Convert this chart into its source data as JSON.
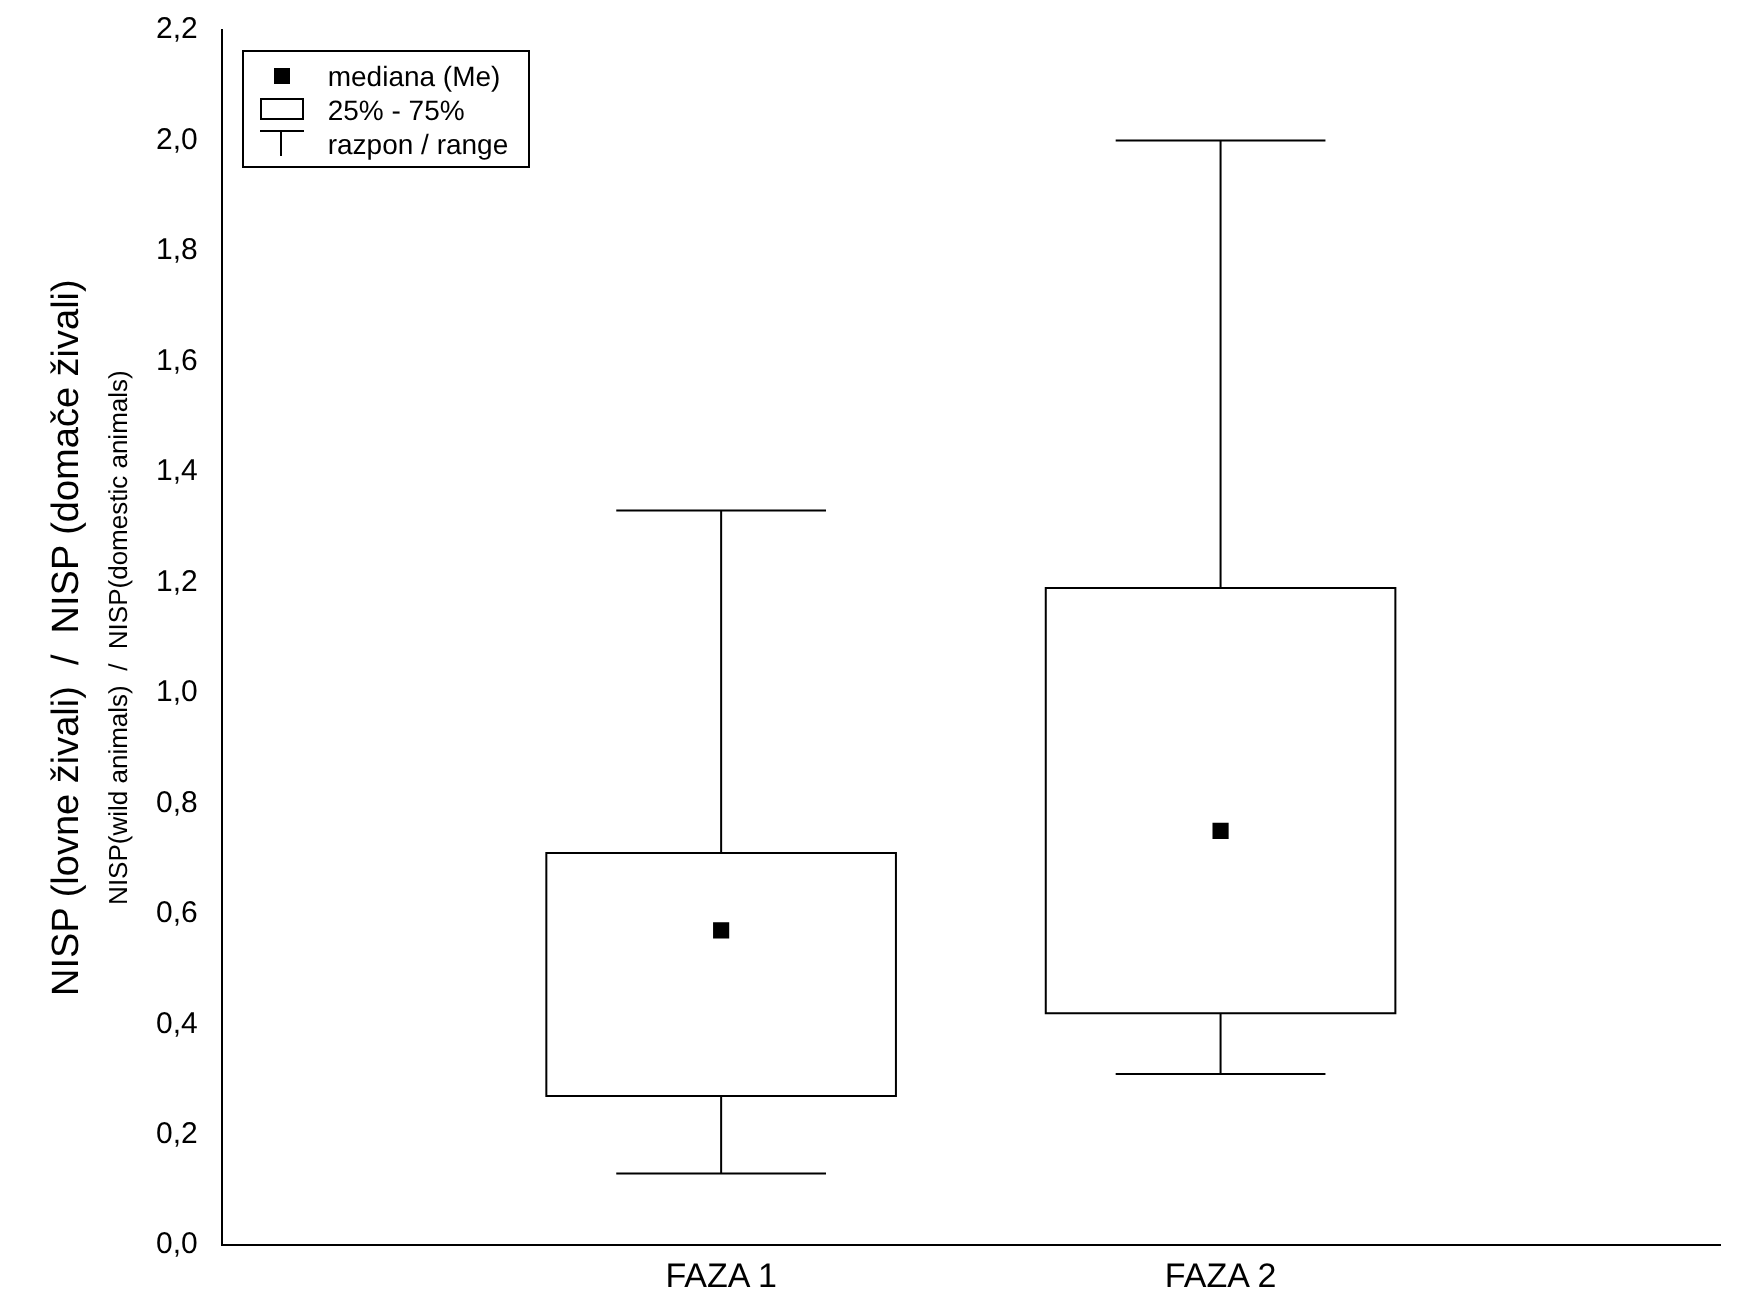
{
  "chart_data": {
    "type": "box",
    "categories": [
      "FAZA 1",
      "FAZA 2"
    ],
    "boxes": [
      {
        "low": 0.13,
        "q1": 0.27,
        "median": 0.57,
        "q3": 0.71,
        "high": 1.33
      },
      {
        "low": 0.31,
        "q1": 0.42,
        "median": 0.75,
        "q3": 1.19,
        "high": 2.0
      }
    ],
    "color": "#000000",
    "marker": "square",
    "ylabel": "NISP (lovne živali)  /  NISP (domače živali)\nNISP(wild animals)  /  NISP(domestic animals)",
    "ylim": [
      0,
      2.2
    ],
    "yticks": [
      {
        "value": 0,
        "label": "0,0"
      },
      {
        "value": 0.2,
        "label": "0,2"
      },
      {
        "value": 0.4,
        "label": "0,4"
      },
      {
        "value": 0.6,
        "label": "0,6"
      },
      {
        "value": 0.8,
        "label": "0,8"
      },
      {
        "value": 1.0,
        "label": "1,0"
      },
      {
        "value": 1.2,
        "label": "1,2"
      },
      {
        "value": 1.4,
        "label": "1,4"
      },
      {
        "value": 1.6,
        "label": "1,6"
      },
      {
        "value": 1.8,
        "label": "1,8"
      },
      {
        "value": 2.0,
        "label": "2,0"
      },
      {
        "value": 2.2,
        "label": "2,2"
      }
    ],
    "grid": false,
    "annotations": [
      "mediana  (Me)",
      "25% - 75%",
      "razpon / range"
    ]
  }
}
